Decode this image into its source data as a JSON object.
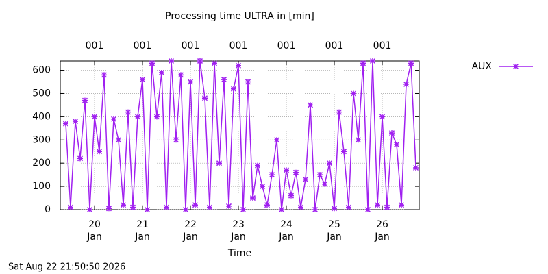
{
  "chart_data": {
    "type": "line",
    "title": "Processing time ULTRA in [min]",
    "xlabel": "Time",
    "timestamp": "Sat Aug 22 21:50:50 2026",
    "legend": "top-right-outside",
    "grid": true,
    "xlim": [
      19.286,
      26.771
    ],
    "ylim": [
      0,
      640
    ],
    "yticks": [
      0,
      100,
      200,
      300,
      400,
      500,
      600
    ],
    "xticks": [
      {
        "value": 20,
        "label": "20 Jan"
      },
      {
        "value": 21,
        "label": "21 Jan"
      },
      {
        "value": 22,
        "label": "22 Jan"
      },
      {
        "value": 23,
        "label": "23 Jan"
      },
      {
        "value": 24,
        "label": "24 Jan"
      },
      {
        "value": 25,
        "label": "25 Jan"
      },
      {
        "value": 26,
        "label": "26 Jan"
      }
    ],
    "x2ticks": [
      {
        "value": 20,
        "label": "001"
      },
      {
        "value": 21,
        "label": "001"
      },
      {
        "value": 22,
        "label": "001"
      },
      {
        "value": 23,
        "label": "001"
      },
      {
        "value": 24,
        "label": "001"
      },
      {
        "value": 25,
        "label": "001"
      },
      {
        "value": 26,
        "label": "001"
      }
    ],
    "x": [
      19.4,
      19.5,
      19.6,
      19.7,
      19.8,
      19.9,
      20.0,
      20.1,
      20.2,
      20.3,
      20.4,
      20.5,
      20.6,
      20.7,
      20.8,
      20.9,
      21.0,
      21.1,
      21.2,
      21.3,
      21.4,
      21.5,
      21.6,
      21.7,
      21.8,
      21.9,
      22.0,
      22.1,
      22.2,
      22.3,
      22.4,
      22.5,
      22.6,
      22.7,
      22.8,
      22.9,
      23.0,
      23.1,
      23.2,
      23.3,
      23.4,
      23.5,
      23.6,
      23.7,
      23.8,
      23.9,
      24.0,
      24.1,
      24.2,
      24.3,
      24.4,
      24.5,
      24.6,
      24.7,
      24.8,
      24.9,
      25.0,
      25.1,
      25.2,
      25.3,
      25.4,
      25.5,
      25.6,
      25.7,
      25.8,
      25.9,
      26.0,
      26.1,
      26.2,
      26.3,
      26.4,
      26.5,
      26.6,
      26.7
    ],
    "series": [
      {
        "name": "AUX",
        "color": "#a020f0",
        "values": [
          370,
          10,
          380,
          220,
          470,
          0,
          400,
          250,
          580,
          5,
          390,
          300,
          20,
          420,
          10,
          400,
          560,
          0,
          630,
          400,
          590,
          10,
          640,
          300,
          580,
          0,
          550,
          20,
          640,
          480,
          10,
          630,
          200,
          560,
          15,
          520,
          620,
          0,
          550,
          50,
          190,
          100,
          20,
          150,
          300,
          0,
          170,
          60,
          160,
          10,
          130,
          450,
          0,
          150,
          110,
          200,
          5,
          420,
          250,
          10,
          500,
          300,
          630,
          0,
          640,
          20,
          400,
          10,
          330,
          280,
          20,
          540,
          630,
          180
        ]
      }
    ]
  }
}
